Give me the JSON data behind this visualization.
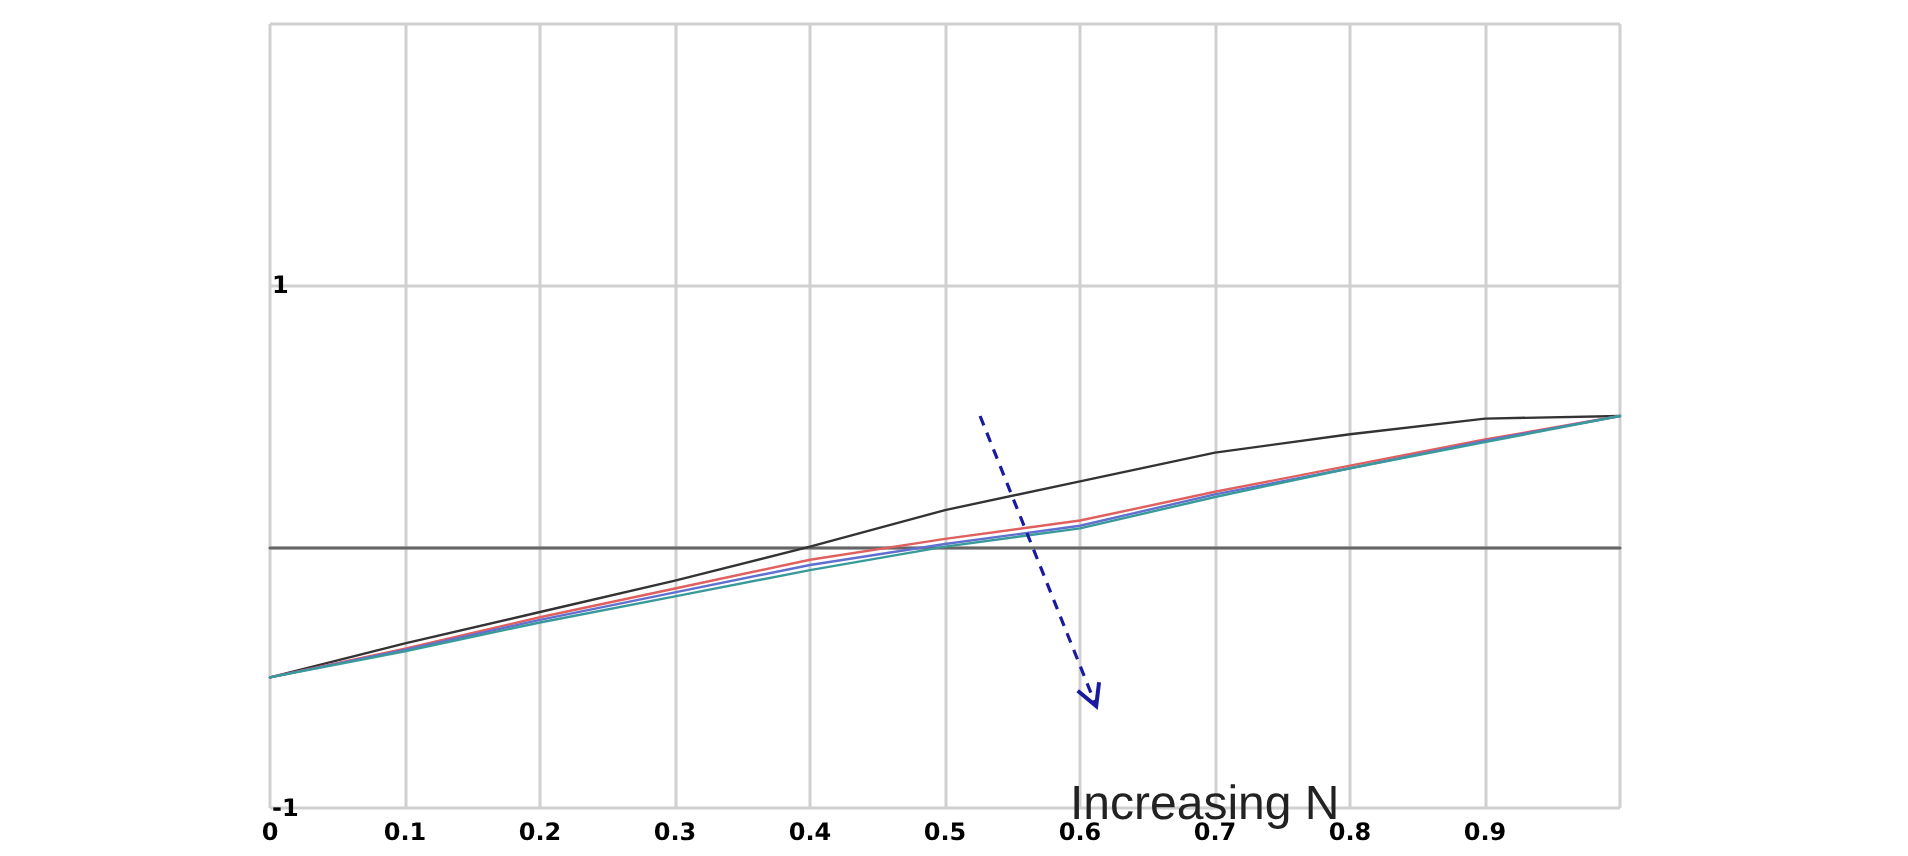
{
  "chart_data": {
    "type": "line",
    "x": [
      0,
      0.1,
      0.2,
      0.3,
      0.4,
      0.5,
      0.6,
      0.7,
      0.8,
      0.9,
      1
    ],
    "series": [
      {
        "color": "#333333",
        "values": [
          -0.5,
          -0.37,
          -0.25,
          -0.13,
          0,
          0.14,
          0.25,
          0.36,
          0.43,
          0.49,
          0.5
        ]
      },
      {
        "color": "#e06060",
        "values": [
          -0.5,
          -0.39,
          -0.27,
          -0.16,
          -0.05,
          0.03,
          0.1,
          0.21,
          0.31,
          0.41,
          0.5
        ]
      },
      {
        "color": "#6070d0",
        "values": [
          -0.5,
          -0.395,
          -0.28,
          -0.175,
          -0.07,
          0.01,
          0.08,
          0.2,
          0.3,
          0.405,
          0.5
        ]
      },
      {
        "color": "#3a9a9a",
        "values": [
          -0.5,
          -0.4,
          -0.29,
          -0.19,
          -0.09,
          0,
          0.07,
          0.19,
          0.3,
          0.4,
          0.5
        ]
      }
    ],
    "xlim": [
      0,
      1
    ],
    "xticks": [
      0,
      0.1,
      0.2,
      0.3,
      0.4,
      0.5,
      0.6,
      0.7,
      0.8,
      0.9,
      {
        "value": 1,
        "label": null
      }
    ],
    "ylim": [
      -1,
      2
    ],
    "yticks": [
      -1,
      {
        "value": 0,
        "label": null
      },
      1,
      {
        "value": 2,
        "label": null
      }
    ],
    "annotations": [
      "Increasing N"
    ],
    "grid": true,
    "marker": "none",
    "line_style": "solid"
  }
}
